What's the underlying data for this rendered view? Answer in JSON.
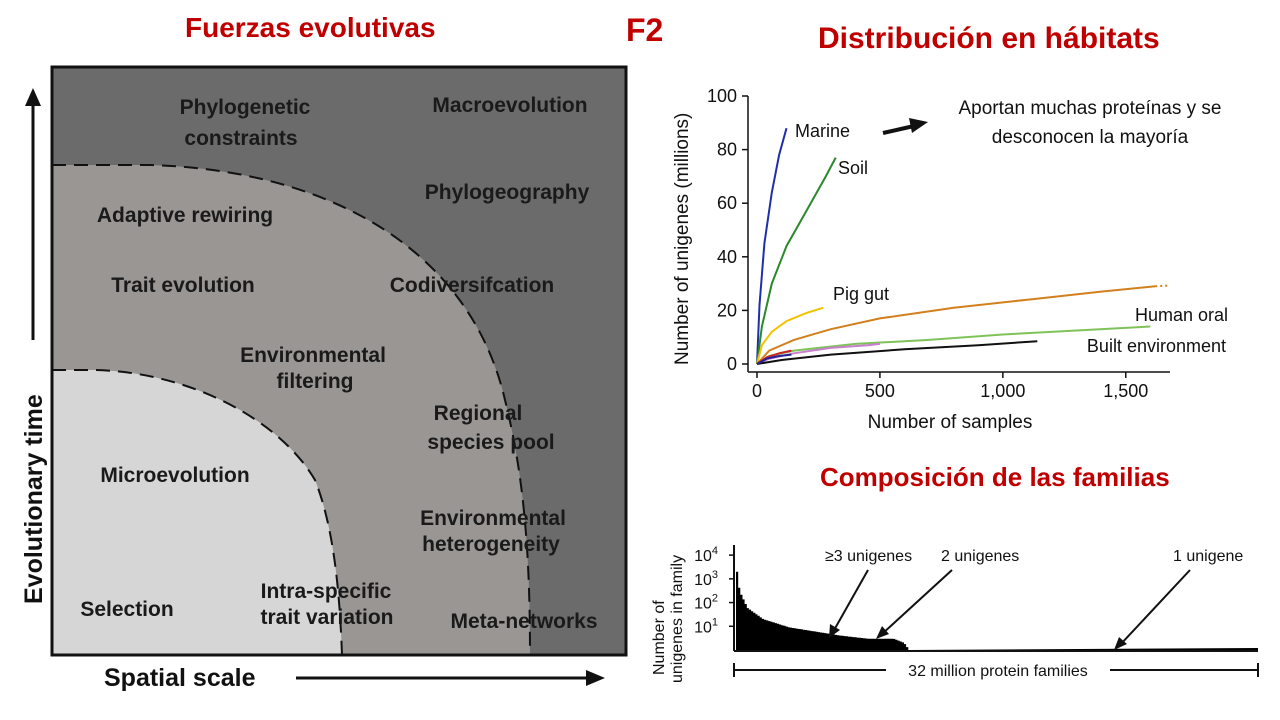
{
  "titles": {
    "fuerzas": "Fuerzas evolutivas",
    "f2": "F2",
    "distribucion": "Distribución en hábitats",
    "composicion": "Composición de las familias"
  },
  "diagram": {
    "y_axis_label": "Evolutionary time",
    "x_axis_label": "Spatial scale",
    "zone_colors": {
      "outer": "#6b6b6b",
      "middle": "#9a9694",
      "inner": "#d6d6d6"
    },
    "labels": {
      "phylogenetic": [
        "Phylogenetic",
        "constraints"
      ],
      "macroevolution": "Macroevolution",
      "phylogeography": "Phylogeography",
      "adaptive_rewiring": "Adaptive rewiring",
      "trait_evolution": "Trait evolution",
      "codiversification": "Codiversifcation",
      "environmental_filtering": [
        "Environmental",
        "filtering"
      ],
      "regional_pool": [
        "Regional",
        "species pool"
      ],
      "microevolution": "Microevolution",
      "environmental_heterogeneity": [
        "Environmental",
        "heterogeneity"
      ],
      "selection": "Selection",
      "intra_specific": [
        "Intra-specific",
        "trait variation"
      ],
      "meta_networks": "Meta-networks"
    }
  },
  "annotation": {
    "line1": "Aportan muchas proteínas y se",
    "line2": "desconocen la mayoría"
  },
  "chart_data": [
    {
      "type": "line",
      "xlabel": "Number of samples",
      "ylabel": "Number of unigenes (millions)",
      "xlim": [
        0,
        1600
      ],
      "ylim": [
        0,
        100
      ],
      "xticks": [
        0,
        500,
        1000,
        1500
      ],
      "xtick_labels": [
        "0",
        "500",
        "1,000",
        "1,500"
      ],
      "yticks": [
        0,
        20,
        40,
        60,
        80,
        100
      ],
      "ytick_labels": [
        "0",
        "20",
        "40",
        "60",
        "80",
        "100"
      ],
      "series": [
        {
          "name": "Marine",
          "color": "#1f2fa8",
          "x": [
            0,
            10,
            30,
            60,
            90,
            120
          ],
          "y": [
            0,
            22,
            45,
            64,
            78,
            88
          ]
        },
        {
          "name": "Soil",
          "color": "#2a8a2a",
          "x": [
            0,
            20,
            60,
            120,
            200,
            280,
            320
          ],
          "y": [
            0,
            14,
            30,
            44,
            57,
            70,
            77
          ]
        },
        {
          "name": "Pig gut",
          "color": "#f2c200",
          "x": [
            0,
            20,
            60,
            120,
            200,
            270
          ],
          "y": [
            0,
            7,
            12,
            16,
            19,
            21
          ]
        },
        {
          "name": "",
          "color": "#d2801e",
          "x": [
            0,
            50,
            150,
            300,
            500,
            800,
            1100,
            1400,
            1620
          ],
          "y": [
            0,
            5,
            9,
            13,
            17,
            21,
            24,
            27,
            29
          ]
        },
        {
          "name": "Human oral",
          "color": "#7fc25a",
          "x": [
            0,
            50,
            150,
            400,
            700,
            1000,
            1300,
            1600
          ],
          "y": [
            0,
            3,
            5,
            7.5,
            9,
            11,
            12.5,
            14
          ]
        },
        {
          "name": "",
          "color": "#c97fd0",
          "x": [
            0,
            50,
            150,
            300,
            450,
            500
          ],
          "y": [
            0,
            2,
            4,
            6,
            7,
            7.5
          ]
        },
        {
          "name": "Built environment",
          "color": "#111111",
          "x": [
            0,
            100,
            300,
            600,
            900,
            1140
          ],
          "y": [
            0,
            1.5,
            3.5,
            5.5,
            7,
            8.5
          ]
        },
        {
          "name": "",
          "color": "#cc2222",
          "x": [
            0,
            40,
            90,
            140
          ],
          "y": [
            0,
            2.5,
            4,
            5
          ]
        },
        {
          "name": "",
          "color": "#222299",
          "x": [
            0,
            40,
            90,
            140
          ],
          "y": [
            0,
            2,
            3,
            3.5
          ]
        }
      ],
      "dotted_extension": {
        "series_color": "#d2801e",
        "x": [
          1620,
          1680
        ],
        "y": [
          29,
          29.3
        ]
      }
    },
    {
      "type": "bar",
      "ylabel": "Number of unigenes in family",
      "yscale": "log",
      "ytick_labels": [
        "10^4",
        "10^3",
        "10^2",
        "10^1"
      ],
      "ytick_values": [
        10000,
        1000,
        100,
        10
      ],
      "xlabel": "32 million protein families",
      "annotations": [
        "≥3 unigenes",
        "2 unigenes",
        "1 unigene"
      ],
      "profile_fraction": [
        0,
        0.005,
        0.02,
        0.05,
        0.1,
        0.15,
        0.2,
        0.25,
        0.3,
        0.32,
        0.33,
        1
      ],
      "profile_value": [
        2000,
        300,
        60,
        20,
        9,
        6,
        4,
        3,
        3,
        2,
        1,
        1
      ]
    }
  ]
}
